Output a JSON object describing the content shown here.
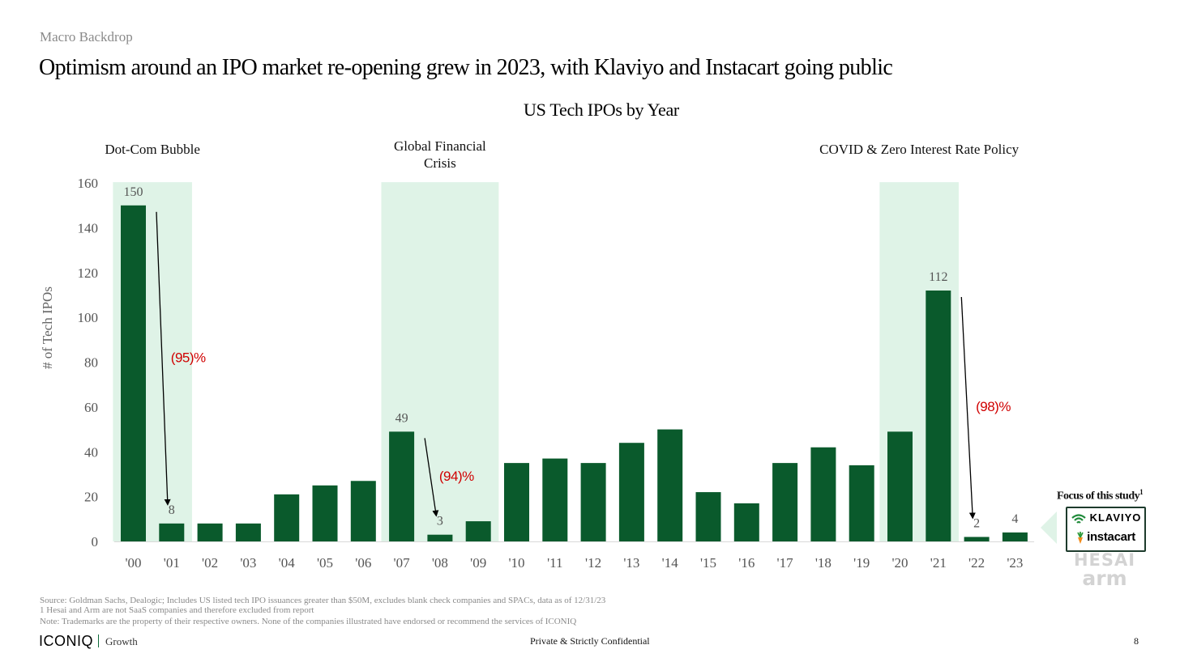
{
  "header": {
    "section_label": "Macro Backdrop",
    "headline": "Optimism around an IPO market re-opening grew in 2023, with Klaviyo and Instacart going public"
  },
  "colors": {
    "bar": "#0a5a2c",
    "highlight_band": "#dff3e7",
    "decline_label": "#d00000",
    "arrow": "#000000",
    "axis_text": "#555555"
  },
  "chart_data": {
    "type": "bar",
    "title": "US Tech IPOs by Year",
    "ylabel": "# of Tech IPOs",
    "xlabel": "",
    "ylim": [
      0,
      160
    ],
    "yticks": [
      0,
      20,
      40,
      60,
      80,
      100,
      120,
      140,
      160
    ],
    "grid": false,
    "categories": [
      "'00",
      "'01",
      "'02",
      "'03",
      "'04",
      "'05",
      "'06",
      "'07",
      "'08",
      "'09",
      "'10",
      "'11",
      "'12",
      "'13",
      "'14",
      "'15",
      "'16",
      "'17",
      "'18",
      "'19",
      "'20",
      "'21",
      "'22",
      "'23"
    ],
    "values": [
      150,
      8,
      8,
      8,
      21,
      25,
      27,
      49,
      3,
      9,
      35,
      37,
      35,
      44,
      50,
      22,
      17,
      35,
      42,
      34,
      49,
      112,
      2,
      4
    ],
    "data_labels": [
      {
        "index": 0,
        "text": "150"
      },
      {
        "index": 1,
        "text": "8"
      },
      {
        "index": 7,
        "text": "49"
      },
      {
        "index": 8,
        "text": "3"
      },
      {
        "index": 21,
        "text": "112"
      },
      {
        "index": 22,
        "text": "2"
      },
      {
        "index": 23,
        "text": "4"
      }
    ],
    "highlight_periods": [
      {
        "label": "Dot-Com Bubble",
        "start_index": 0,
        "end_index": 1
      },
      {
        "label": "Global Financial Crisis",
        "label_lines": [
          "Global Financial",
          "Crisis"
        ],
        "start_index": 7,
        "end_index": 9
      },
      {
        "label": "COVID & Zero Interest Rate Policy",
        "start_index": 20,
        "end_index": 21
      }
    ],
    "declines": [
      {
        "from_index": 0,
        "to_index": 1,
        "label": "(95)%"
      },
      {
        "from_index": 7,
        "to_index": 8,
        "label": "(94)%"
      },
      {
        "from_index": 21,
        "to_index": 22,
        "label": "(98)%"
      }
    ]
  },
  "focus_panel": {
    "title": "Focus of this study",
    "title_sup": "1",
    "logos": [
      "KLAVIYO",
      "instacart"
    ],
    "excluded_logos": [
      "HESAI",
      "arm"
    ]
  },
  "footer": {
    "source": "Source: Goldman Sachs, Dealogic; Includes US listed tech IPO issuances greater than $50M, excludes blank check companies and SPACs, data as of 12/31/23",
    "footnote_1": "1 Hesai and Arm are not SaaS companies and therefore excluded from report",
    "note": "Note: Trademarks are the property of their respective owners. None of the companies illustrated have endorsed or recommend the services of ICONIQ",
    "brand": "ICONIQ",
    "brand_sub": "Growth",
    "confidential": "Private & Strictly Confidential",
    "page_number": "8"
  }
}
